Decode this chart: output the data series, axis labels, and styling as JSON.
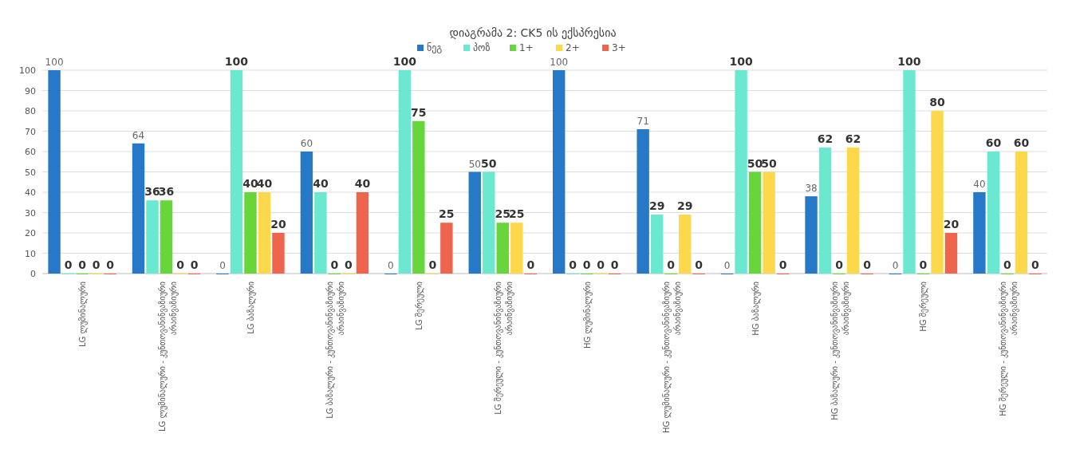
{
  "chart_data": {
    "type": "bar",
    "title": "დიაგრამა 2: CK5 ის ექსპრესია",
    "categories": [
      "LG ლუმინალური",
      "LG ლუმინალური - კუნთოვანინვაზიური არაინვაზიური",
      "LG ბაზალური",
      "LG ბაზალური - კუნთოვანინვაზიური არაინვაზიური",
      "LG შერეული",
      "LG შერეული - კუნთოვანინვაზიური არაინვაზიური",
      "HG ლუმინალური",
      "HG ლუმინალური - კუნთოვანინვაზიური არაინვაზიური",
      "HG ბაზალური",
      "HG ბაზალური - კუნთოვანინვაზიური არაინვაზიური",
      "HG შერეული",
      "HG შერეული - კუნთოვანინვაზიური არაინვაზიური"
    ],
    "series": [
      {
        "name": "ნეგ",
        "color": "#2878c8",
        "values": [
          100,
          64,
          0,
          60,
          0,
          50,
          100,
          71,
          0,
          38,
          0,
          40
        ]
      },
      {
        "name": "პოზ",
        "color": "#6ae8d0",
        "values": [
          0,
          36,
          100,
          40,
          100,
          50,
          0,
          29,
          100,
          62,
          100,
          60
        ]
      },
      {
        "name": "1+",
        "color": "#66d63a",
        "values": [
          0,
          36,
          40,
          0,
          75,
          25,
          0,
          0,
          50,
          0,
          0,
          0
        ]
      },
      {
        "name": "2+",
        "color": "#fdd84a",
        "values": [
          0,
          0,
          40,
          0,
          0,
          25,
          0,
          29,
          50,
          62,
          80,
          60
        ]
      },
      {
        "name": "3+",
        "color": "#ef644c",
        "values": [
          0,
          0,
          20,
          40,
          25,
          0,
          0,
          0,
          0,
          0,
          20,
          0
        ]
      }
    ],
    "ylim": [
      0,
      100
    ],
    "yticks": [
      0,
      10,
      20,
      30,
      40,
      50,
      60,
      70,
      80,
      90,
      100
    ],
    "grid": "y",
    "legend": "top",
    "data_labels": true
  }
}
